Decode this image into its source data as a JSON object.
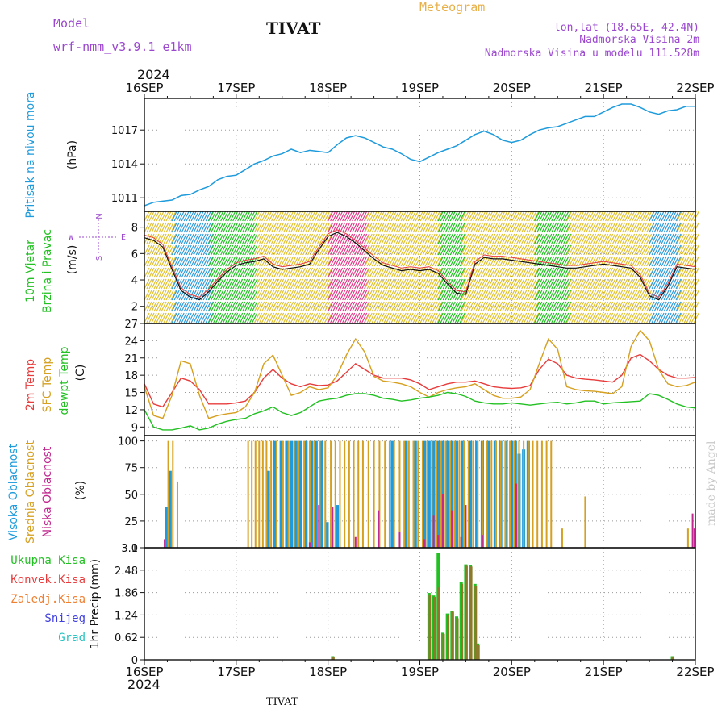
{
  "header": {
    "model_label": "Model",
    "model_name": "wrf-nmm_v3.9.1  e1km",
    "station": "TIVAT",
    "product": "Meteogram",
    "lonlat": "lon,lat (18.65E, 42.4N)",
    "elevation": "Nadmorska Visina 2m",
    "model_elevation": "Nadmorska Visina u modelu 111.528m",
    "year": "2024",
    "footer_station": "TIVAT",
    "credit": "made by Angel"
  },
  "colors": {
    "pressure": "#1e9bdc",
    "temp2m": "#e83c3c",
    "sfc_temp": "#d6a020",
    "dewpoint": "#22c022",
    "wind_lo": "#2f9bd8",
    "wind_mid": "#22c022",
    "wind_hi": "#e0c030",
    "wind_top": "#e03c88",
    "high_cloud": "#1e9bdc",
    "mid_cloud": "#d6a020",
    "low_cloud": "#c02a90",
    "total_precip": "#22c022",
    "conv_precip": "#e83c3c",
    "frz_precip": "#f07f30",
    "snow": "#4040e0",
    "graupel": "#22c0c0",
    "purple_text": "#9b48cf",
    "orange_text": "#e8b048"
  },
  "chart_data": [
    {
      "type": "line",
      "panel": "pressure",
      "ylabel": [
        "Pritisak na nivou mora",
        "(hPa)"
      ],
      "x_ticks": [
        "16SEP",
        "17SEP",
        "18SEP",
        "19SEP",
        "20SEP",
        "21SEP",
        "22SEP"
      ],
      "y_ticks": [
        1011,
        1014,
        1017
      ],
      "ylim": [
        1009.8,
        1019.8
      ],
      "x": [
        0,
        0.1,
        0.2,
        0.3,
        0.4,
        0.5,
        0.6,
        0.7,
        0.8,
        0.9,
        1.0,
        1.1,
        1.2,
        1.3,
        1.4,
        1.5,
        1.6,
        1.7,
        1.8,
        1.9,
        2.0,
        2.1,
        2.2,
        2.3,
        2.4,
        2.5,
        2.6,
        2.7,
        2.8,
        2.9,
        3.0,
        3.1,
        3.2,
        3.3,
        3.4,
        3.5,
        3.6,
        3.7,
        3.8,
        3.9,
        4.0,
        4.1,
        4.2,
        4.3,
        4.4,
        4.5,
        4.6,
        4.7,
        4.8,
        4.9,
        5.0,
        5.1,
        5.2,
        5.3,
        5.4,
        5.5,
        5.6,
        5.7,
        5.8,
        5.9,
        6.0
      ],
      "series": [
        {
          "values": [
            1010.3,
            1010.6,
            1010.7,
            1010.8,
            1011.2,
            1011.3,
            1011.7,
            1012.0,
            1012.6,
            1012.9,
            1013.0,
            1013.5,
            1014.0,
            1014.3,
            1014.7,
            1014.9,
            1015.3,
            1015.0,
            1015.2,
            1015.1,
            1015.0,
            1015.7,
            1016.3,
            1016.5,
            1016.3,
            1015.9,
            1015.5,
            1015.3,
            1014.9,
            1014.4,
            1014.2,
            1014.6,
            1015.0,
            1015.3,
            1015.6,
            1016.1,
            1016.6,
            1016.9,
            1016.6,
            1016.1,
            1015.9,
            1016.1,
            1016.6,
            1017.0,
            1017.2,
            1017.3,
            1017.6,
            1017.9,
            1018.2,
            1018.2,
            1018.6,
            1019.0,
            1019.3,
            1019.3,
            1019.0,
            1018.6,
            1018.4,
            1018.7,
            1018.8,
            1019.1,
            1019.1
          ]
        }
      ]
    },
    {
      "type": "line",
      "panel": "wind",
      "ylabel": [
        "10m Vjetar",
        "Brzina i Pravac",
        "(m/s)"
      ],
      "compass": [
        "S",
        "W",
        "E",
        "N"
      ],
      "y_ticks": [
        2,
        4,
        6,
        8
      ],
      "ylim": [
        0.7,
        9.2
      ],
      "x": [
        0,
        0.1,
        0.2,
        0.3,
        0.4,
        0.5,
        0.6,
        0.7,
        0.8,
        0.9,
        1.0,
        1.1,
        1.2,
        1.3,
        1.4,
        1.5,
        1.6,
        1.7,
        1.8,
        1.9,
        2.0,
        2.1,
        2.2,
        2.3,
        2.4,
        2.5,
        2.6,
        2.7,
        2.8,
        2.9,
        3.0,
        3.1,
        3.2,
        3.3,
        3.4,
        3.5,
        3.6,
        3.7,
        3.8,
        3.9,
        4.0,
        4.1,
        4.2,
        4.3,
        4.4,
        4.5,
        4.6,
        4.7,
        4.8,
        4.9,
        5.0,
        5.1,
        5.2,
        5.3,
        5.4,
        5.5,
        5.6,
        5.7,
        5.8,
        5.9,
        6.0
      ],
      "series": [
        {
          "values": [
            7.2,
            7.0,
            6.5,
            4.8,
            3.2,
            2.7,
            2.5,
            3.1,
            3.9,
            4.6,
            5.1,
            5.3,
            5.4,
            5.6,
            5.0,
            4.8,
            4.9,
            5.0,
            5.2,
            6.3,
            7.3,
            7.6,
            7.3,
            6.8,
            6.2,
            5.6,
            5.1,
            4.9,
            4.7,
            4.8,
            4.7,
            4.8,
            4.5,
            3.7,
            3.0,
            2.9,
            5.2,
            5.7,
            5.6,
            5.6,
            5.5,
            5.4,
            5.3,
            5.2,
            5.1,
            5.0,
            4.9,
            4.9,
            5.0,
            5.1,
            5.2,
            5.1,
            5.0,
            4.9,
            4.2,
            2.8,
            2.5,
            3.5,
            5.0,
            4.9,
            4.8
          ]
        }
      ],
      "direction_band_segments": [
        {
          "from": 0.0,
          "to": 0.3,
          "speed": "hi"
        },
        {
          "from": 0.3,
          "to": 0.7,
          "speed": "lo"
        },
        {
          "from": 0.7,
          "to": 1.2,
          "speed": "mid"
        },
        {
          "from": 1.2,
          "to": 2.0,
          "speed": "hi"
        },
        {
          "from": 2.0,
          "to": 2.4,
          "speed": "top"
        },
        {
          "from": 2.4,
          "to": 3.2,
          "speed": "hi"
        },
        {
          "from": 3.2,
          "to": 3.45,
          "speed": "mid"
        },
        {
          "from": 3.45,
          "to": 4.25,
          "speed": "hi"
        },
        {
          "from": 4.25,
          "to": 4.6,
          "speed": "mid"
        },
        {
          "from": 4.6,
          "to": 5.5,
          "speed": "hi"
        },
        {
          "from": 5.5,
          "to": 5.8,
          "speed": "lo"
        },
        {
          "from": 5.8,
          "to": 6.0,
          "speed": "hi"
        }
      ]
    },
    {
      "type": "line",
      "panel": "temperature",
      "ylabel": [
        "2m Temp",
        "SFC Temp",
        "dewpt Temp",
        "(C)"
      ],
      "y_ticks": [
        9,
        12,
        15,
        18,
        21,
        24,
        27
      ],
      "ylim": [
        7.5,
        27
      ],
      "x": [
        0,
        0.1,
        0.2,
        0.3,
        0.4,
        0.5,
        0.6,
        0.7,
        0.8,
        0.9,
        1.0,
        1.1,
        1.2,
        1.3,
        1.4,
        1.5,
        1.6,
        1.7,
        1.8,
        1.9,
        2.0,
        2.1,
        2.2,
        2.3,
        2.4,
        2.5,
        2.6,
        2.7,
        2.8,
        2.9,
        3.0,
        3.1,
        3.2,
        3.3,
        3.4,
        3.5,
        3.6,
        3.7,
        3.8,
        3.9,
        4.0,
        4.1,
        4.2,
        4.3,
        4.4,
        4.5,
        4.6,
        4.7,
        4.8,
        4.9,
        5.0,
        5.1,
        5.2,
        5.3,
        5.4,
        5.5,
        5.6,
        5.7,
        5.8,
        5.9,
        6.0
      ],
      "series": [
        {
          "name": "2m Temp",
          "values": [
            16.5,
            13.0,
            12.5,
            15.0,
            17.5,
            17.0,
            15.5,
            13.0,
            13.0,
            13.0,
            13.2,
            13.5,
            15.0,
            17.5,
            19.0,
            17.5,
            16.5,
            16.0,
            16.5,
            16.2,
            16.3,
            17.0,
            18.5,
            20.0,
            19.0,
            18.0,
            17.5,
            17.5,
            17.5,
            17.2,
            16.5,
            15.5,
            16.0,
            16.5,
            16.8,
            16.8,
            17.0,
            16.5,
            16.0,
            15.8,
            15.7,
            15.8,
            16.2,
            19.0,
            20.8,
            20.0,
            18.0,
            17.5,
            17.3,
            17.2,
            17.0,
            16.8,
            18.0,
            21.0,
            21.6,
            20.5,
            19.0,
            18.0,
            17.5,
            17.5,
            17.6
          ]
        },
        {
          "name": "SFC Temp",
          "values": [
            16.0,
            11.0,
            10.5,
            14.5,
            20.5,
            20.0,
            14.5,
            10.5,
            11.0,
            11.3,
            11.5,
            12.5,
            15.0,
            20.0,
            21.5,
            18.0,
            14.5,
            15.0,
            16.0,
            15.5,
            15.8,
            18.0,
            21.5,
            24.3,
            22.0,
            17.8,
            17.0,
            16.8,
            16.5,
            16.0,
            15.0,
            14.2,
            15.0,
            15.5,
            15.8,
            16.0,
            16.5,
            15.5,
            14.5,
            14.0,
            14.0,
            14.2,
            15.5,
            20.0,
            24.3,
            22.5,
            16.0,
            15.5,
            15.3,
            15.2,
            15.0,
            14.8,
            16.0,
            23.0,
            25.8,
            24.0,
            19.0,
            16.5,
            16.0,
            16.2,
            16.8
          ]
        },
        {
          "name": "dewpt Temp",
          "values": [
            12.0,
            9.0,
            8.5,
            8.5,
            8.8,
            9.2,
            8.5,
            8.8,
            9.5,
            10.0,
            10.3,
            10.5,
            11.3,
            11.8,
            12.5,
            11.5,
            11.0,
            11.5,
            12.5,
            13.5,
            13.8,
            14.0,
            14.5,
            14.8,
            14.8,
            14.5,
            14.0,
            13.8,
            13.5,
            13.7,
            14.0,
            14.2,
            14.5,
            15.0,
            14.8,
            14.3,
            13.5,
            13.2,
            13.0,
            13.0,
            13.2,
            13.0,
            12.8,
            13.0,
            13.2,
            13.3,
            13.0,
            13.2,
            13.5,
            13.5,
            13.0,
            13.2,
            13.3,
            13.4,
            13.5,
            14.8,
            14.5,
            13.8,
            13.0,
            12.5,
            12.3
          ]
        }
      ]
    },
    {
      "type": "bar",
      "panel": "cloud",
      "ylabel": [
        "Visoka Oblacnost",
        "Srednja Oblacnost",
        "Niska Oblacnost",
        "(%)"
      ],
      "y_ticks": [
        0,
        25,
        50,
        75,
        100
      ],
      "ylim": [
        0,
        105
      ],
      "series": [
        {
          "name": "Visoka Oblacnost",
          "x": [
            0.24,
            0.28,
            1.35,
            1.42,
            1.49,
            1.55,
            1.6,
            1.65,
            1.7,
            1.76,
            1.82,
            1.87,
            1.93,
            1.99,
            2.04,
            2.1,
            2.7,
            2.85,
            2.95,
            3.05,
            3.1,
            3.15,
            3.2,
            3.25,
            3.3,
            3.35,
            3.4,
            3.47,
            3.55,
            3.62,
            3.68,
            3.75,
            3.82,
            3.88,
            3.94,
            4.0,
            4.04,
            4.08,
            4.13,
            4.18
          ],
          "values": [
            38,
            72,
            72,
            100,
            100,
            100,
            100,
            100,
            100,
            100,
            100,
            100,
            100,
            24,
            24,
            40,
            100,
            100,
            100,
            100,
            100,
            100,
            100,
            100,
            100,
            100,
            100,
            100,
            100,
            100,
            100,
            100,
            100,
            100,
            100,
            100,
            100,
            88,
            92,
            100
          ]
        },
        {
          "name": "Srednja Oblacnost",
          "values": [
            100,
            100,
            62,
            100,
            100,
            100,
            100,
            100,
            100,
            100,
            100,
            100,
            100,
            100,
            100,
            100,
            100,
            100,
            100,
            100,
            100,
            100,
            100,
            100,
            100,
            100,
            100,
            100,
            100,
            100,
            100,
            100,
            100,
            100,
            100,
            100,
            100,
            100,
            100,
            100,
            100,
            100,
            100,
            100,
            100,
            100,
            100,
            100,
            100,
            100,
            100,
            100,
            100,
            100,
            100,
            100,
            100,
            100,
            100,
            100,
            100,
            100,
            100,
            100,
            100,
            100,
            100,
            100,
            18,
            48,
            18
          ],
          "x": [
            0.26,
            0.31,
            0.36,
            1.13,
            1.17,
            1.21,
            1.25,
            1.29,
            1.33,
            1.38,
            1.44,
            1.51,
            1.57,
            1.63,
            1.68,
            1.74,
            1.8,
            1.85,
            1.91,
            1.97,
            2.03,
            2.08,
            2.13,
            2.18,
            2.23,
            2.28,
            2.33,
            2.38,
            2.44,
            2.5,
            2.56,
            2.62,
            2.67,
            2.72,
            2.78,
            2.83,
            2.88,
            2.93,
            2.98,
            3.03,
            3.08,
            3.13,
            3.18,
            3.23,
            3.28,
            3.33,
            3.38,
            3.43,
            3.48,
            3.53,
            3.58,
            3.63,
            3.68,
            3.73,
            3.78,
            3.83,
            3.88,
            3.93,
            3.98,
            4.03,
            4.08,
            4.13,
            4.18,
            4.23,
            4.28,
            4.33,
            4.38,
            4.43,
            4.55,
            4.8,
            5.92
          ]
        },
        {
          "name": "Niska Oblacnost",
          "x": [
            0.22,
            1.8,
            1.9,
            2.05,
            2.3,
            2.55,
            2.78,
            3.05,
            3.15,
            3.2,
            3.25,
            3.35,
            3.45,
            3.5,
            3.68,
            4.05,
            5.97,
            5.99
          ],
          "values": [
            8,
            5,
            40,
            38,
            10,
            35,
            15,
            8,
            30,
            12,
            50,
            35,
            10,
            40,
            12,
            60,
            32,
            18
          ]
        }
      ]
    },
    {
      "type": "bar",
      "panel": "precip",
      "ylabel": [
        "1hr Precip",
        "(mm)"
      ],
      "legend": [
        "Ukupna  Kisa",
        "Konvek.Kisa",
        "Zaledj.Kisa",
        "Snijeg",
        "Grad"
      ],
      "y_ticks": [
        0,
        0.62,
        1.24,
        1.86,
        2.48,
        3.1
      ],
      "ylim": [
        0,
        3.1
      ],
      "x": [
        2.05,
        3.1,
        3.15,
        3.2,
        3.25,
        3.3,
        3.35,
        3.4,
        3.45,
        3.5,
        3.55,
        3.6,
        3.63,
        5.75
      ],
      "series": [
        {
          "name": "Ukupna  Kisa",
          "values": [
            0.1,
            1.85,
            1.78,
            2.95,
            0.75,
            1.28,
            1.36,
            1.2,
            2.15,
            2.64,
            2.63,
            2.1,
            0.45,
            0.1
          ]
        },
        {
          "name": "Konvek.Kisa",
          "values": [
            0.08,
            1.8,
            1.74,
            2.0,
            0.72,
            1.24,
            1.33,
            1.15,
            2.1,
            2.6,
            2.58,
            2.05,
            0.42,
            0.08
          ]
        }
      ]
    }
  ]
}
